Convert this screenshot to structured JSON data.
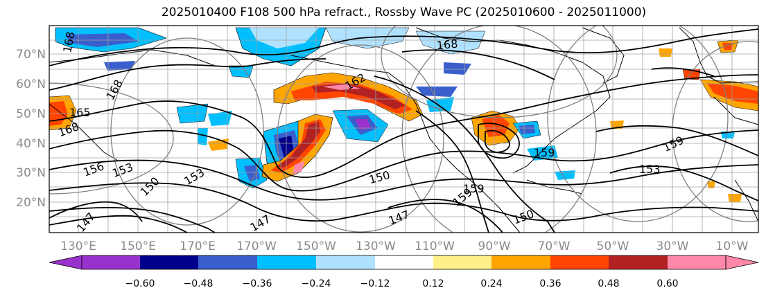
{
  "title": "2025010400 F108 500 hPa refract., Rossby Wave PC (2025010600 - 2025011000)",
  "lat_labels": [
    "70°N",
    "60°N",
    "50°N",
    "40°N",
    "30°N",
    "20°N"
  ],
  "lon_labels": [
    "130°E",
    "150°E",
    "170°E",
    "170°W",
    "150°W",
    "130°W",
    "110°W",
    "90°W",
    "70°W",
    "50°W",
    "30°W",
    "10°W"
  ],
  "colorbar": {
    "tick_labels": [
      "−0.60",
      "−0.48",
      "−0.36",
      "−0.24",
      "−0.12",
      "0.12",
      "0.24",
      "0.36",
      "0.48",
      "0.60"
    ],
    "colors": [
      "#9932cc",
      "#00008b",
      "#3a5fcd",
      "#00bfff",
      "#b0e2ff",
      "#ffffff",
      "#fff08a",
      "#ffa500",
      "#ff4500",
      "#b22222",
      "#ff88aa"
    ]
  },
  "contour_labels": [
    "168",
    "165",
    "168",
    "156",
    "153",
    "150",
    "147",
    "147",
    "153",
    "150",
    "147",
    "159",
    "150",
    "159",
    "153",
    "159",
    "159",
    "168",
    "162",
    "168"
  ],
  "colors": {
    "contour": "#000000",
    "grid": "#a0a0a0",
    "coast": "#000000",
    "circles": "#808080"
  }
}
